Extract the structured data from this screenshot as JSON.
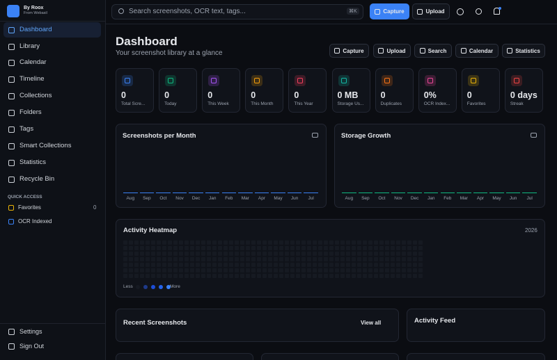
{
  "sidebar": {
    "brand": "By Roox",
    "brand_sub": "From Webasil",
    "nav": [
      "Dashboard",
      "Library",
      "Calendar",
      "Timeline",
      "Collections",
      "Folders",
      "Tags",
      "Smart Collections",
      "Statistics",
      "Recycle Bin"
    ],
    "quick_access_title": "QUICK ACCESS",
    "quick_access": [
      {
        "label": "Favorites",
        "count": 0
      },
      {
        "label": "OCR Indexed"
      }
    ],
    "footer": [
      "Settings",
      "Sign Out"
    ]
  },
  "topbar": {
    "search_placeholder": "Search screenshots, OCR text, tags...",
    "shortcut": "⌘K",
    "buttons": [
      "Capture",
      "Upload"
    ]
  },
  "header": {
    "title": "Dashboard",
    "subtitle": "Your screenshot library at a glance",
    "actions": [
      "Capture",
      "Upload",
      "Search",
      "Calendar",
      "Statistics"
    ]
  },
  "stats": [
    {
      "value": "0",
      "label": "Total Scre...",
      "color": "#3b82f6"
    },
    {
      "value": "0",
      "label": "Today",
      "color": "#10b981"
    },
    {
      "value": "0",
      "label": "This Week",
      "color": "#a855f7"
    },
    {
      "value": "0",
      "label": "This Month",
      "color": "#f59e0b"
    },
    {
      "value": "0",
      "label": "This Year",
      "color": "#f43f5e"
    },
    {
      "value": "0 MB",
      "label": "Storage Us...",
      "color": "#14b8a6"
    },
    {
      "value": "0",
      "label": "Duplicates",
      "color": "#f97316"
    },
    {
      "value": "0%",
      "label": "OCR Index...",
      "color": "#ec4899"
    },
    {
      "value": "0",
      "label": "Favorites",
      "color": "#eab308"
    },
    {
      "value": "0 days",
      "label": "Streak",
      "color": "#ef4444"
    }
  ],
  "charts": [
    {
      "type": "bar",
      "title": "Screenshots per Month",
      "color": "#3b82f6",
      "categories": [
        "Aug",
        "Sep",
        "Oct",
        "Nov",
        "Dec",
        "Jan",
        "Feb",
        "Mar",
        "Apr",
        "May",
        "Jun",
        "Jul"
      ],
      "values": [
        0,
        0,
        0,
        0,
        0,
        0,
        0,
        0,
        0,
        0,
        0,
        0
      ]
    },
    {
      "type": "bar",
      "title": "Storage Growth",
      "color": "#10b981",
      "categories": [
        "Aug",
        "Sep",
        "Oct",
        "Nov",
        "Dec",
        "Jan",
        "Feb",
        "Mar",
        "Apr",
        "May",
        "Jun",
        "Jul"
      ],
      "values": [
        0,
        0,
        0,
        0,
        0,
        0,
        0,
        0,
        0,
        0,
        0,
        0
      ]
    }
  ],
  "heatmap": {
    "title": "Activity Heatmap",
    "year": "2026",
    "less": "Less",
    "more": "More"
  },
  "recent": {
    "title": "Recent Screenshots",
    "link": "View all"
  },
  "activity": {
    "title": "Activity Feed"
  }
}
